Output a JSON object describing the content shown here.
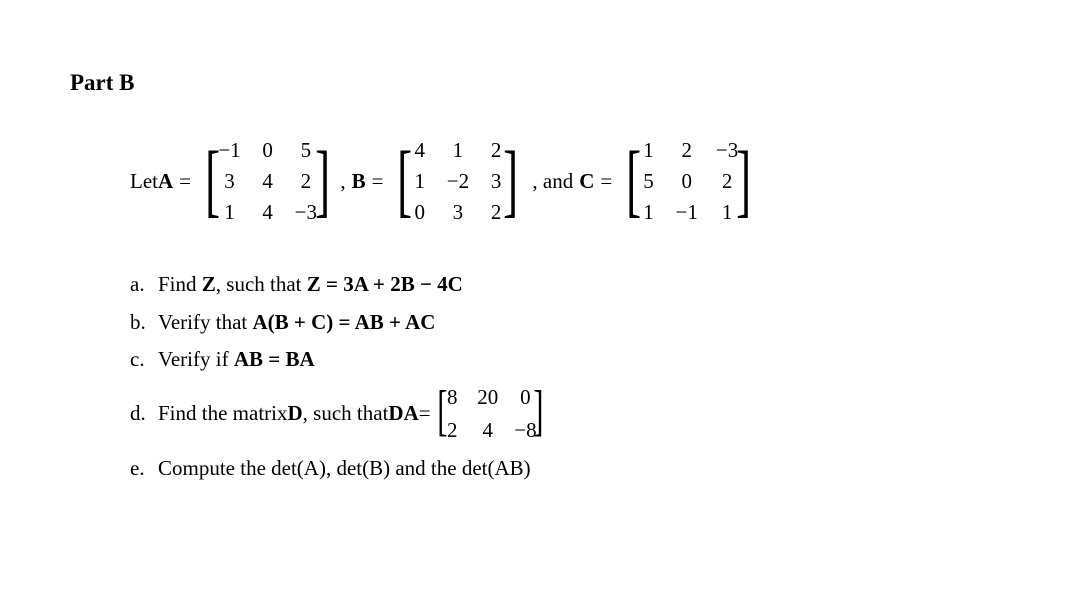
{
  "part_title": "Part B",
  "let_text": "Let ",
  "vars": {
    "A": "A",
    "B": "B",
    "C": "C"
  },
  "eq_sign": "=",
  "comma": ",",
  "and_text": ", and ",
  "matrices": {
    "A": [
      [
        "−1",
        "0",
        "5"
      ],
      [
        "3",
        "4",
        "2"
      ],
      [
        "1",
        "4",
        "−3"
      ]
    ],
    "B": [
      [
        "4",
        "1",
        "2"
      ],
      [
        "1",
        "−2",
        "3"
      ],
      [
        "0",
        "3",
        "2"
      ]
    ],
    "C": [
      [
        "1",
        "2",
        "−3"
      ],
      [
        "5",
        "0",
        "2"
      ],
      [
        "1",
        "−1",
        "1"
      ]
    ],
    "DA": [
      [
        "8",
        "20",
        "0"
      ],
      [
        "2",
        "4",
        "−8"
      ]
    ]
  },
  "questions": {
    "a": {
      "label": "a.",
      "text_pre": "Find ",
      "Z": "Z",
      "text_mid": ", such that ",
      "eq": "Z = 3A + 2B − 4C"
    },
    "b": {
      "label": "b.",
      "text_pre": "Verify that ",
      "eq": "A(B + C) = AB + AC"
    },
    "c": {
      "label": "c.",
      "text_pre": "Verify if ",
      "eq": "AB = BA"
    },
    "d": {
      "label": "d.",
      "text_pre": "Find the matrix ",
      "D": "D",
      "text_mid": ", such that ",
      "DA": "DA",
      "eq_sign": " = "
    },
    "e": {
      "label": "e.",
      "text_pre": "Compute the det(A), det(B) and the det(AB)"
    }
  },
  "style": {
    "background": "#ffffff",
    "text_color": "#000000",
    "font_family": "Times New Roman",
    "title_fontsize": 23,
    "body_fontsize": 21
  }
}
